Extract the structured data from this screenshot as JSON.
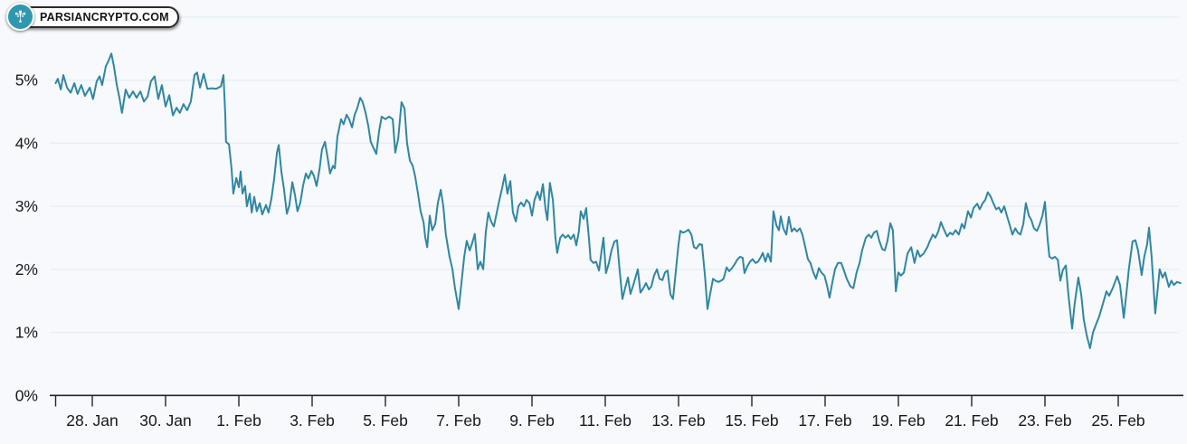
{
  "logo": {
    "text": "PARSIANCRYPTO.COM",
    "icon": "tree-icon",
    "icon_bg_color": "#2e99ae",
    "icon_glyph_color": "#ffffff",
    "text_color": "#141414"
  },
  "chart_data": {
    "type": "line",
    "title": "",
    "xlabel": "",
    "ylabel": "",
    "legend": false,
    "grid": true,
    "background_color": "#f7f9fc",
    "gridline_color": "#e6eef7",
    "axis_color": "#22252a",
    "label_color": "#16191d",
    "series_color": "#3087a3",
    "series_name": "percent-change",
    "x_unit": "days, 0 = 27. Jan",
    "xlim_days": [
      0,
      30.7
    ],
    "ylim_pct": [
      0,
      6.3
    ],
    "gridline_pcts": [
      1,
      2,
      3,
      4,
      5,
      6
    ],
    "y_ticks": [
      {
        "pct": 0,
        "label": "0%"
      },
      {
        "pct": 1,
        "label": "1%"
      },
      {
        "pct": 2,
        "label": "2%"
      },
      {
        "pct": 3,
        "label": "3%"
      },
      {
        "pct": 4,
        "label": "4%"
      },
      {
        "pct": 5,
        "label": "5%"
      }
    ],
    "x_ticks": [
      {
        "day": 0,
        "label": ""
      },
      {
        "day": 1,
        "label": "28. Jan"
      },
      {
        "day": 3,
        "label": "30. Jan"
      },
      {
        "day": 5,
        "label": "1. Feb"
      },
      {
        "day": 7,
        "label": "3. Feb"
      },
      {
        "day": 9,
        "label": "5. Feb"
      },
      {
        "day": 11,
        "label": "7. Feb"
      },
      {
        "day": 13,
        "label": "9. Feb"
      },
      {
        "day": 15,
        "label": "11. Feb"
      },
      {
        "day": 17,
        "label": "13. Feb"
      },
      {
        "day": 19,
        "label": "15. Feb"
      },
      {
        "day": 21,
        "label": "17. Feb"
      },
      {
        "day": 23,
        "label": "19. Feb"
      },
      {
        "day": 25,
        "label": "21. Feb"
      },
      {
        "day": 27,
        "label": "23. Feb"
      },
      {
        "day": 29,
        "label": "25. Feb"
      }
    ],
    "points": [
      [
        0,
        4.95
      ],
      [
        0.06,
        5.02
      ],
      [
        0.14,
        4.85
      ],
      [
        0.21,
        5.08
      ],
      [
        0.31,
        4.88
      ],
      [
        0.41,
        4.8
      ],
      [
        0.51,
        4.95
      ],
      [
        0.6,
        4.78
      ],
      [
        0.7,
        4.92
      ],
      [
        0.8,
        4.75
      ],
      [
        0.93,
        4.88
      ],
      [
        1.02,
        4.7
      ],
      [
        1.12,
        4.98
      ],
      [
        1.2,
        5.06
      ],
      [
        1.27,
        4.92
      ],
      [
        1.37,
        5.22
      ],
      [
        1.44,
        5.3
      ],
      [
        1.52,
        5.42
      ],
      [
        1.59,
        5.22
      ],
      [
        1.67,
        4.92
      ],
      [
        1.74,
        4.72
      ],
      [
        1.81,
        4.48
      ],
      [
        1.91,
        4.85
      ],
      [
        2.01,
        4.72
      ],
      [
        2.11,
        4.82
      ],
      [
        2.21,
        4.72
      ],
      [
        2.31,
        4.82
      ],
      [
        2.41,
        4.66
      ],
      [
        2.51,
        4.74
      ],
      [
        2.6,
        4.98
      ],
      [
        2.7,
        5.06
      ],
      [
        2.8,
        4.7
      ],
      [
        2.9,
        4.92
      ],
      [
        3.0,
        4.58
      ],
      [
        3.1,
        4.76
      ],
      [
        3.2,
        4.44
      ],
      [
        3.3,
        4.56
      ],
      [
        3.39,
        4.48
      ],
      [
        3.49,
        4.62
      ],
      [
        3.59,
        4.52
      ],
      [
        3.69,
        4.66
      ],
      [
        3.79,
        5.08
      ],
      [
        3.86,
        5.12
      ],
      [
        3.94,
        4.88
      ],
      [
        4.04,
        5.1
      ],
      [
        4.14,
        4.86
      ],
      [
        4.26,
        4.87
      ],
      [
        4.38,
        4.86
      ],
      [
        4.51,
        4.9
      ],
      [
        4.58,
        5.08
      ],
      [
        4.63,
        4.45
      ],
      [
        4.65,
        4.02
      ],
      [
        4.73,
        3.98
      ],
      [
        4.8,
        3.6
      ],
      [
        4.85,
        3.2
      ],
      [
        4.93,
        3.45
      ],
      [
        5.0,
        3.3
      ],
      [
        5.05,
        3.55
      ],
      [
        5.1,
        3.2
      ],
      [
        5.17,
        3.32
      ],
      [
        5.22,
        3.0
      ],
      [
        5.3,
        3.2
      ],
      [
        5.35,
        2.9
      ],
      [
        5.42,
        3.15
      ],
      [
        5.49,
        2.92
      ],
      [
        5.57,
        3.05
      ],
      [
        5.64,
        2.87
      ],
      [
        5.74,
        3.02
      ],
      [
        5.81,
        2.9
      ],
      [
        5.89,
        3.12
      ],
      [
        5.96,
        3.42
      ],
      [
        6.04,
        3.85
      ],
      [
        6.09,
        3.97
      ],
      [
        6.16,
        3.55
      ],
      [
        6.23,
        3.28
      ],
      [
        6.31,
        2.88
      ],
      [
        6.38,
        3.02
      ],
      [
        6.46,
        3.38
      ],
      [
        6.53,
        3.18
      ],
      [
        6.6,
        2.92
      ],
      [
        6.68,
        3.06
      ],
      [
        6.75,
        3.32
      ],
      [
        6.83,
        3.52
      ],
      [
        6.9,
        3.44
      ],
      [
        6.98,
        3.56
      ],
      [
        7.05,
        3.48
      ],
      [
        7.12,
        3.32
      ],
      [
        7.2,
        3.58
      ],
      [
        7.27,
        3.9
      ],
      [
        7.35,
        4.02
      ],
      [
        7.42,
        3.78
      ],
      [
        7.49,
        3.52
      ],
      [
        7.57,
        3.64
      ],
      [
        7.62,
        3.6
      ],
      [
        7.69,
        4.1
      ],
      [
        7.79,
        4.38
      ],
      [
        7.86,
        4.3
      ],
      [
        7.94,
        4.45
      ],
      [
        8.01,
        4.38
      ],
      [
        8.09,
        4.25
      ],
      [
        8.16,
        4.45
      ],
      [
        8.23,
        4.55
      ],
      [
        8.31,
        4.72
      ],
      [
        8.38,
        4.65
      ],
      [
        8.46,
        4.48
      ],
      [
        8.53,
        4.28
      ],
      [
        8.6,
        4.02
      ],
      [
        8.68,
        3.92
      ],
      [
        8.75,
        3.83
      ],
      [
        8.83,
        4.2
      ],
      [
        8.9,
        4.42
      ],
      [
        9.0,
        4.38
      ],
      [
        9.1,
        4.42
      ],
      [
        9.2,
        4.38
      ],
      [
        9.27,
        3.85
      ],
      [
        9.35,
        4.08
      ],
      [
        9.44,
        4.65
      ],
      [
        9.52,
        4.55
      ],
      [
        9.59,
        4.0
      ],
      [
        9.67,
        3.72
      ],
      [
        9.74,
        3.65
      ],
      [
        9.81,
        3.48
      ],
      [
        9.89,
        3.2
      ],
      [
        9.96,
        2.92
      ],
      [
        10.04,
        2.75
      ],
      [
        10.09,
        2.5
      ],
      [
        10.14,
        2.35
      ],
      [
        10.21,
        2.85
      ],
      [
        10.28,
        2.62
      ],
      [
        10.36,
        2.72
      ],
      [
        10.43,
        3.05
      ],
      [
        10.51,
        3.26
      ],
      [
        10.58,
        3.0
      ],
      [
        10.65,
        2.55
      ],
      [
        10.75,
        2.2
      ],
      [
        10.83,
        2.0
      ],
      [
        10.9,
        1.7
      ],
      [
        11.0,
        1.37
      ],
      [
        11.07,
        1.75
      ],
      [
        11.15,
        2.2
      ],
      [
        11.22,
        2.45
      ],
      [
        11.3,
        2.3
      ],
      [
        11.37,
        2.42
      ],
      [
        11.44,
        2.56
      ],
      [
        11.52,
        2.0
      ],
      [
        11.59,
        2.12
      ],
      [
        11.67,
        2.0
      ],
      [
        11.74,
        2.6
      ],
      [
        11.81,
        2.9
      ],
      [
        11.89,
        2.75
      ],
      [
        11.96,
        2.68
      ],
      [
        12.04,
        2.9
      ],
      [
        12.11,
        3.1
      ],
      [
        12.19,
        3.3
      ],
      [
        12.26,
        3.5
      ],
      [
        12.33,
        3.2
      ],
      [
        12.41,
        3.4
      ],
      [
        12.48,
        2.9
      ],
      [
        12.56,
        2.76
      ],
      [
        12.63,
        3.0
      ],
      [
        12.7,
        3.06
      ],
      [
        12.78,
        3.0
      ],
      [
        12.85,
        3.1
      ],
      [
        12.93,
        3.05
      ],
      [
        13.0,
        2.85
      ],
      [
        13.07,
        3.1
      ],
      [
        13.15,
        3.23
      ],
      [
        13.22,
        3.1
      ],
      [
        13.3,
        3.35
      ],
      [
        13.37,
        2.95
      ],
      [
        13.42,
        2.78
      ],
      [
        13.49,
        3.37
      ],
      [
        13.57,
        3.1
      ],
      [
        13.64,
        2.5
      ],
      [
        13.69,
        2.26
      ],
      [
        13.77,
        2.5
      ],
      [
        13.84,
        2.55
      ],
      [
        13.91,
        2.5
      ],
      [
        13.99,
        2.54
      ],
      [
        14.06,
        2.48
      ],
      [
        14.14,
        2.55
      ],
      [
        14.21,
        2.38
      ],
      [
        14.28,
        2.6
      ],
      [
        14.33,
        2.92
      ],
      [
        14.41,
        2.8
      ],
      [
        14.48,
        2.97
      ],
      [
        14.56,
        2.45
      ],
      [
        14.6,
        2.15
      ],
      [
        14.68,
        2.1
      ],
      [
        14.75,
        2.12
      ],
      [
        14.83,
        1.98
      ],
      [
        14.9,
        2.3
      ],
      [
        14.95,
        2.5
      ],
      [
        15.02,
        1.94
      ],
      [
        15.1,
        2.1
      ],
      [
        15.17,
        2.3
      ],
      [
        15.25,
        2.44
      ],
      [
        15.32,
        2.46
      ],
      [
        15.39,
        2.0
      ],
      [
        15.47,
        1.53
      ],
      [
        15.54,
        1.7
      ],
      [
        15.62,
        1.87
      ],
      [
        15.69,
        1.61
      ],
      [
        15.77,
        1.76
      ],
      [
        15.84,
        1.9
      ],
      [
        15.89,
        2.0
      ],
      [
        15.96,
        1.63
      ],
      [
        16.04,
        1.7
      ],
      [
        16.11,
        1.78
      ],
      [
        16.19,
        1.68
      ],
      [
        16.26,
        1.73
      ],
      [
        16.33,
        1.9
      ],
      [
        16.41,
        2.0
      ],
      [
        16.48,
        1.85
      ],
      [
        16.56,
        1.83
      ],
      [
        16.63,
        1.95
      ],
      [
        16.7,
        1.98
      ],
      [
        16.78,
        1.6
      ],
      [
        16.85,
        1.53
      ],
      [
        16.93,
        2.0
      ],
      [
        17.0,
        2.4
      ],
      [
        17.05,
        2.61
      ],
      [
        17.12,
        2.58
      ],
      [
        17.2,
        2.6
      ],
      [
        17.27,
        2.63
      ],
      [
        17.35,
        2.55
      ],
      [
        17.42,
        2.35
      ],
      [
        17.49,
        2.33
      ],
      [
        17.57,
        2.4
      ],
      [
        17.64,
        2.39
      ],
      [
        17.72,
        1.9
      ],
      [
        17.79,
        1.37
      ],
      [
        17.86,
        1.6
      ],
      [
        17.94,
        1.85
      ],
      [
        18.01,
        1.82
      ],
      [
        18.09,
        1.8
      ],
      [
        18.16,
        1.82
      ],
      [
        18.23,
        1.85
      ],
      [
        18.31,
        2.03
      ],
      [
        18.38,
        1.97
      ],
      [
        18.46,
        2.02
      ],
      [
        18.53,
        2.08
      ],
      [
        18.6,
        2.15
      ],
      [
        18.68,
        2.2
      ],
      [
        18.75,
        2.18
      ],
      [
        18.8,
        1.94
      ],
      [
        18.88,
        2.05
      ],
      [
        18.95,
        2.12
      ],
      [
        19.02,
        2.16
      ],
      [
        19.1,
        2.1
      ],
      [
        19.17,
        2.12
      ],
      [
        19.25,
        2.2
      ],
      [
        19.3,
        2.26
      ],
      [
        19.37,
        2.12
      ],
      [
        19.44,
        2.25
      ],
      [
        19.52,
        2.12
      ],
      [
        19.59,
        2.92
      ],
      [
        19.67,
        2.7
      ],
      [
        19.74,
        2.62
      ],
      [
        19.79,
        2.84
      ],
      [
        19.86,
        2.65
      ],
      [
        19.94,
        2.55
      ],
      [
        20.01,
        2.83
      ],
      [
        20.09,
        2.6
      ],
      [
        20.16,
        2.65
      ],
      [
        20.23,
        2.6
      ],
      [
        20.31,
        2.65
      ],
      [
        20.38,
        2.55
      ],
      [
        20.46,
        2.35
      ],
      [
        20.53,
        2.16
      ],
      [
        20.6,
        2.1
      ],
      [
        20.68,
        1.95
      ],
      [
        20.75,
        1.85
      ],
      [
        20.83,
        2.02
      ],
      [
        20.9,
        1.95
      ],
      [
        20.98,
        1.9
      ],
      [
        21.05,
        1.75
      ],
      [
        21.12,
        1.55
      ],
      [
        21.2,
        1.8
      ],
      [
        21.27,
        2.0
      ],
      [
        21.35,
        2.1
      ],
      [
        21.44,
        2.1
      ],
      [
        21.52,
        1.97
      ],
      [
        21.59,
        1.85
      ],
      [
        21.69,
        1.73
      ],
      [
        21.77,
        1.7
      ],
      [
        21.86,
        1.95
      ],
      [
        21.94,
        2.1
      ],
      [
        22.01,
        2.3
      ],
      [
        22.11,
        2.5
      ],
      [
        22.19,
        2.55
      ],
      [
        22.26,
        2.5
      ],
      [
        22.33,
        2.58
      ],
      [
        22.41,
        2.61
      ],
      [
        22.48,
        2.45
      ],
      [
        22.56,
        2.32
      ],
      [
        22.63,
        2.3
      ],
      [
        22.7,
        2.45
      ],
      [
        22.78,
        2.73
      ],
      [
        22.85,
        2.62
      ],
      [
        22.93,
        1.65
      ],
      [
        23.0,
        1.95
      ],
      [
        23.07,
        1.9
      ],
      [
        23.15,
        1.95
      ],
      [
        23.25,
        2.25
      ],
      [
        23.35,
        2.35
      ],
      [
        23.44,
        2.1
      ],
      [
        23.52,
        2.3
      ],
      [
        23.59,
        2.2
      ],
      [
        23.69,
        2.25
      ],
      [
        23.79,
        2.35
      ],
      [
        23.86,
        2.45
      ],
      [
        23.94,
        2.55
      ],
      [
        24.01,
        2.5
      ],
      [
        24.09,
        2.6
      ],
      [
        24.16,
        2.75
      ],
      [
        24.23,
        2.65
      ],
      [
        24.33,
        2.52
      ],
      [
        24.41,
        2.58
      ],
      [
        24.48,
        2.55
      ],
      [
        24.56,
        2.62
      ],
      [
        24.65,
        2.55
      ],
      [
        24.73,
        2.72
      ],
      [
        24.8,
        2.65
      ],
      [
        24.9,
        2.92
      ],
      [
        24.98,
        2.82
      ],
      [
        25.05,
        2.97
      ],
      [
        25.15,
        3.04
      ],
      [
        25.22,
        2.95
      ],
      [
        25.3,
        3.05
      ],
      [
        25.37,
        3.1
      ],
      [
        25.44,
        3.22
      ],
      [
        25.52,
        3.15
      ],
      [
        25.59,
        3.05
      ],
      [
        25.67,
        2.95
      ],
      [
        25.74,
        2.98
      ],
      [
        25.81,
        2.9
      ],
      [
        25.89,
        3.0
      ],
      [
        25.96,
        2.85
      ],
      [
        26.04,
        2.7
      ],
      [
        26.11,
        2.55
      ],
      [
        26.19,
        2.65
      ],
      [
        26.26,
        2.58
      ],
      [
        26.33,
        2.55
      ],
      [
        26.41,
        2.72
      ],
      [
        26.48,
        3.05
      ],
      [
        26.56,
        2.85
      ],
      [
        26.63,
        2.78
      ],
      [
        26.7,
        2.65
      ],
      [
        26.78,
        2.61
      ],
      [
        26.85,
        2.7
      ],
      [
        26.93,
        2.85
      ],
      [
        27.0,
        3.07
      ],
      [
        27.07,
        2.5
      ],
      [
        27.12,
        2.2
      ],
      [
        27.2,
        2.17
      ],
      [
        27.27,
        2.2
      ],
      [
        27.35,
        2.15
      ],
      [
        27.42,
        1.82
      ],
      [
        27.49,
        1.99
      ],
      [
        27.57,
        2.06
      ],
      [
        27.64,
        1.6
      ],
      [
        27.74,
        1.06
      ],
      [
        27.81,
        1.45
      ],
      [
        27.91,
        1.87
      ],
      [
        27.99,
        1.6
      ],
      [
        28.06,
        1.2
      ],
      [
        28.14,
        0.95
      ],
      [
        28.23,
        0.75
      ],
      [
        28.31,
        1.0
      ],
      [
        28.41,
        1.15
      ],
      [
        28.48,
        1.25
      ],
      [
        28.58,
        1.45
      ],
      [
        28.68,
        1.65
      ],
      [
        28.75,
        1.58
      ],
      [
        28.85,
        1.7
      ],
      [
        28.97,
        1.89
      ],
      [
        29.05,
        1.75
      ],
      [
        29.15,
        1.23
      ],
      [
        29.22,
        1.6
      ],
      [
        29.29,
        2.0
      ],
      [
        29.39,
        2.44
      ],
      [
        29.47,
        2.46
      ],
      [
        29.54,
        2.3
      ],
      [
        29.64,
        1.91
      ],
      [
        29.71,
        2.2
      ],
      [
        29.79,
        2.4
      ],
      [
        29.84,
        2.66
      ],
      [
        29.91,
        2.2
      ],
      [
        30.01,
        1.3
      ],
      [
        30.08,
        1.7
      ],
      [
        30.13,
        2.0
      ],
      [
        30.21,
        1.87
      ],
      [
        30.28,
        1.95
      ],
      [
        30.38,
        1.72
      ],
      [
        30.45,
        1.82
      ],
      [
        30.52,
        1.75
      ],
      [
        30.6,
        1.8
      ],
      [
        30.7,
        1.78
      ]
    ]
  }
}
